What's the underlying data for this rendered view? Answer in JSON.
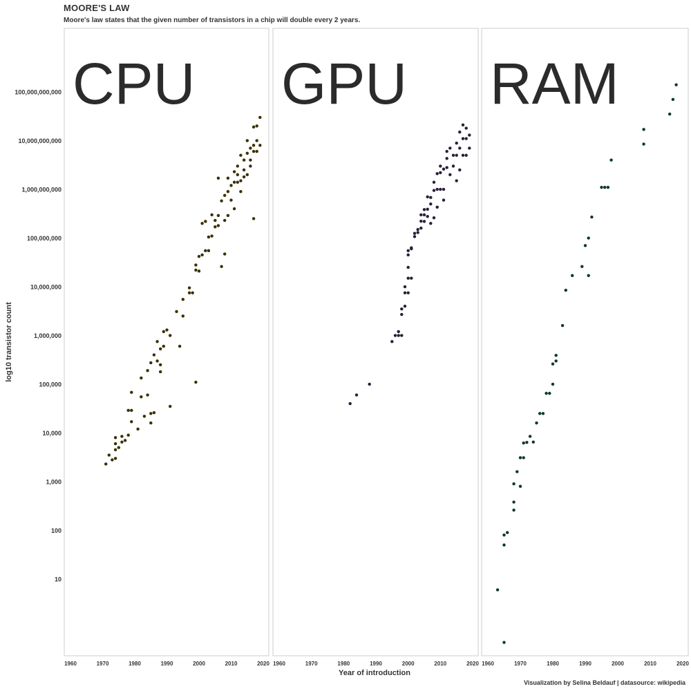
{
  "header": {
    "title": "MOORE'S LAW",
    "subtitle": "Moore's law states that the given number of transistors in a chip will double every 2 years."
  },
  "footer": {
    "caption": "Visualization by Selina Beldauf | datasource: wikipedia"
  },
  "chart_data": {
    "type": "scatter",
    "xlabel": "Year of introduction",
    "ylabel": "log10 transistor count",
    "y_scale": "log10",
    "xlim": [
      1958,
      2022
    ],
    "ylim": [
      0.3,
      1000000000000
    ],
    "x_ticks": [
      "1960",
      "1970",
      "1980",
      "1990",
      "2000",
      "2010",
      "2020"
    ],
    "y_ticks": [
      {
        "value": 10,
        "label": "10"
      },
      {
        "value": 100,
        "label": "100"
      },
      {
        "value": 1000,
        "label": "1,000"
      },
      {
        "value": 10000,
        "label": "10,000"
      },
      {
        "value": 100000,
        "label": "100,000"
      },
      {
        "value": 1000000,
        "label": "1,000,000"
      },
      {
        "value": 10000000,
        "label": "10,000,000"
      },
      {
        "value": 100000000,
        "label": "100,000,000"
      },
      {
        "value": 1000000000,
        "label": "1,000,000,000"
      },
      {
        "value": 10000000000,
        "label": "10,000,000,000"
      },
      {
        "value": 100000000000,
        "label": "100,000,000,000"
      }
    ],
    "grid": false,
    "legend": "none",
    "colors": {
      "CPU": "#3a3000",
      "GPU": "#2a2038",
      "RAM": "#103830"
    },
    "panels": [
      {
        "name": "CPU",
        "points": [
          [
            1971,
            2300
          ],
          [
            1972,
            3500
          ],
          [
            1973,
            2800
          ],
          [
            1974,
            3000
          ],
          [
            1974,
            4500
          ],
          [
            1974,
            6000
          ],
          [
            1974,
            8000
          ],
          [
            1975,
            5000
          ],
          [
            1976,
            6500
          ],
          [
            1976,
            8500
          ],
          [
            1977,
            7000
          ],
          [
            1978,
            9000
          ],
          [
            1978,
            29000
          ],
          [
            1979,
            29000
          ],
          [
            1979,
            68000
          ],
          [
            1979,
            17000
          ],
          [
            1981,
            12000
          ],
          [
            1982,
            55000
          ],
          [
            1982,
            134000
          ],
          [
            1983,
            22000
          ],
          [
            1984,
            190000
          ],
          [
            1984,
            60000
          ],
          [
            1985,
            275000
          ],
          [
            1985,
            16000
          ],
          [
            1985,
            25000
          ],
          [
            1986,
            26000
          ],
          [
            1986,
            400000
          ],
          [
            1987,
            750000
          ],
          [
            1987,
            300000
          ],
          [
            1988,
            250000
          ],
          [
            1988,
            530000
          ],
          [
            1988,
            180000
          ],
          [
            1989,
            1200000
          ],
          [
            1989,
            600000
          ],
          [
            1990,
            1300000
          ],
          [
            1991,
            1000000
          ],
          [
            1991,
            35000
          ],
          [
            1993,
            3100000
          ],
          [
            1994,
            600000
          ],
          [
            1995,
            2500000
          ],
          [
            1995,
            5500000
          ],
          [
            1997,
            7500000
          ],
          [
            1997,
            9500000
          ],
          [
            1998,
            7500000
          ],
          [
            1999,
            110000
          ],
          [
            1999,
            22000000
          ],
          [
            1999,
            28000000
          ],
          [
            2000,
            42000000
          ],
          [
            2000,
            21000000
          ],
          [
            2001,
            45000000
          ],
          [
            2001,
            200000000
          ],
          [
            2002,
            55000000
          ],
          [
            2002,
            220000000
          ],
          [
            2003,
            55000000
          ],
          [
            2003,
            105000000
          ],
          [
            2004,
            110000000
          ],
          [
            2004,
            300000000
          ],
          [
            2005,
            230000000
          ],
          [
            2005,
            170000000
          ],
          [
            2006,
            290000000
          ],
          [
            2006,
            1700000000
          ],
          [
            2006,
            180000000
          ],
          [
            2007,
            26000000
          ],
          [
            2007,
            580000000
          ],
          [
            2008,
            750000000
          ],
          [
            2008,
            230000000
          ],
          [
            2008,
            47000000
          ],
          [
            2009,
            900000000
          ],
          [
            2009,
            1700000000
          ],
          [
            2009,
            290000000
          ],
          [
            2010,
            1200000000
          ],
          [
            2010,
            600000000
          ],
          [
            2011,
            2300000000
          ],
          [
            2011,
            1400000000
          ],
          [
            2011,
            400000000
          ],
          [
            2012,
            1400000000
          ],
          [
            2012,
            3000000000
          ],
          [
            2012,
            2000000000
          ],
          [
            2013,
            5000000000
          ],
          [
            2013,
            1500000000
          ],
          [
            2013,
            900000000
          ],
          [
            2014,
            2500000000
          ],
          [
            2014,
            4000000000
          ],
          [
            2014,
            1800000000
          ],
          [
            2015,
            10000000000
          ],
          [
            2015,
            5500000000
          ],
          [
            2015,
            2000000000
          ],
          [
            2016,
            4000000000
          ],
          [
            2016,
            3000000000
          ],
          [
            2016,
            7000000000
          ],
          [
            2017,
            19000000000
          ],
          [
            2017,
            8000000000
          ],
          [
            2017,
            6000000000
          ],
          [
            2017,
            250000000
          ],
          [
            2018,
            20000000000
          ],
          [
            2018,
            10000000000
          ],
          [
            2018,
            6000000000
          ],
          [
            2019,
            30000000000
          ],
          [
            2019,
            8000000000
          ]
        ]
      },
      {
        "name": "GPU",
        "points": [
          [
            1982,
            40000
          ],
          [
            1984,
            60000
          ],
          [
            1988,
            100000
          ],
          [
            1995,
            750000
          ],
          [
            1996,
            1000000
          ],
          [
            1997,
            1000000
          ],
          [
            1997,
            1200000
          ],
          [
            1998,
            1000000
          ],
          [
            1998,
            2700000
          ],
          [
            1998,
            3500000
          ],
          [
            1999,
            4000000
          ],
          [
            1999,
            7500000
          ],
          [
            1999,
            10000000
          ],
          [
            2000,
            7500000
          ],
          [
            2000,
            15000000
          ],
          [
            2000,
            25000000
          ],
          [
            2000,
            45000000
          ],
          [
            2000,
            55000000
          ],
          [
            2001,
            60000000
          ],
          [
            2001,
            15000000
          ],
          [
            2001,
            63000000
          ],
          [
            2002,
            107000000
          ],
          [
            2002,
            125000000
          ],
          [
            2003,
            130000000
          ],
          [
            2003,
            150000000
          ],
          [
            2004,
            222000000
          ],
          [
            2004,
            160000000
          ],
          [
            2004,
            300000000
          ],
          [
            2005,
            300000000
          ],
          [
            2005,
            220000000
          ],
          [
            2005,
            384000000
          ],
          [
            2006,
            700000000
          ],
          [
            2006,
            278000000
          ],
          [
            2006,
            390000000
          ],
          [
            2007,
            681000000
          ],
          [
            2007,
            500000000
          ],
          [
            2007,
            200000000
          ],
          [
            2008,
            1400000000
          ],
          [
            2008,
            950000000
          ],
          [
            2008,
            260000000
          ],
          [
            2009,
            1000000000
          ],
          [
            2009,
            430000000
          ],
          [
            2009,
            2100000000
          ],
          [
            2010,
            3000000000
          ],
          [
            2010,
            2200000000
          ],
          [
            2010,
            1000000000
          ],
          [
            2011,
            2600000000
          ],
          [
            2011,
            1000000000
          ],
          [
            2011,
            600000000
          ],
          [
            2012,
            4300000000
          ],
          [
            2012,
            2800000000
          ],
          [
            2012,
            6000000000
          ],
          [
            2013,
            7000000000
          ],
          [
            2013,
            2000000000
          ],
          [
            2014,
            5000000000
          ],
          [
            2014,
            3000000000
          ],
          [
            2015,
            8900000000
          ],
          [
            2015,
            5000000000
          ],
          [
            2015,
            1500000000
          ],
          [
            2016,
            15000000000
          ],
          [
            2016,
            7000000000
          ],
          [
            2016,
            2500000000
          ],
          [
            2017,
            21000000000
          ],
          [
            2017,
            11000000000
          ],
          [
            2017,
            5000000000
          ],
          [
            2018,
            18000000000
          ],
          [
            2018,
            11000000000
          ],
          [
            2018,
            5000000000
          ],
          [
            2019,
            13000000000
          ],
          [
            2019,
            7000000000
          ]
        ]
      },
      {
        "name": "RAM",
        "points": [
          [
            1963,
            6
          ],
          [
            1965,
            0.5
          ],
          [
            1965,
            50
          ],
          [
            1965,
            80
          ],
          [
            1966,
            90
          ],
          [
            1968,
            260
          ],
          [
            1968,
            380
          ],
          [
            1968,
            900
          ],
          [
            1969,
            1600
          ],
          [
            1970,
            800
          ],
          [
            1970,
            3100
          ],
          [
            1971,
            3100
          ],
          [
            1971,
            6200
          ],
          [
            1972,
            6400
          ],
          [
            1973,
            8500
          ],
          [
            1974,
            6500
          ],
          [
            1975,
            16000
          ],
          [
            1976,
            25000
          ],
          [
            1977,
            25000
          ],
          [
            1978,
            65000
          ],
          [
            1979,
            65000
          ],
          [
            1980,
            100000
          ],
          [
            1980,
            260000
          ],
          [
            1981,
            300000
          ],
          [
            1981,
            390000
          ],
          [
            1983,
            1600000
          ],
          [
            1984,
            8500000
          ],
          [
            1986,
            17000000
          ],
          [
            1989,
            26000000
          ],
          [
            1990,
            70000000
          ],
          [
            1991,
            100000000
          ],
          [
            1991,
            17000000
          ],
          [
            1992,
            270000000
          ],
          [
            1995,
            1100000000
          ],
          [
            1996,
            1100000000
          ],
          [
            1997,
            1100000000
          ],
          [
            1998,
            4000000000
          ],
          [
            2008,
            8500000000
          ],
          [
            2008,
            17000000000
          ],
          [
            2016,
            35000000000
          ],
          [
            2017,
            70000000000
          ],
          [
            2018,
            140000000000
          ]
        ]
      }
    ]
  }
}
